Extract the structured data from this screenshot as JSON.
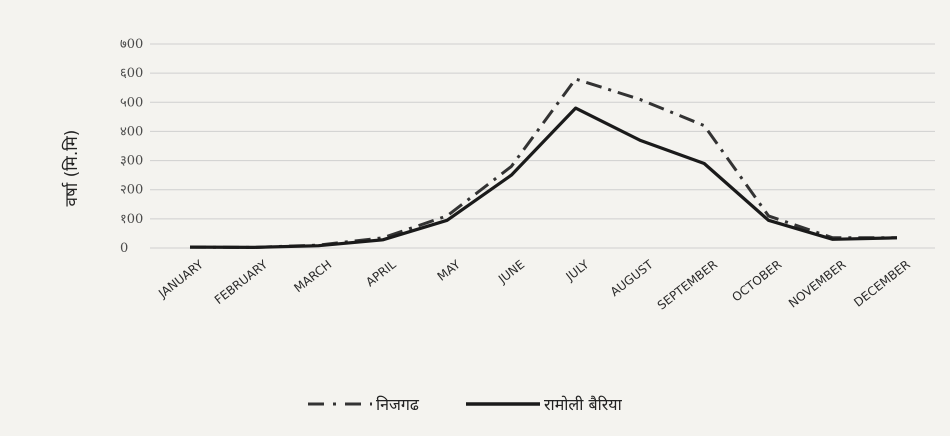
{
  "chart_data": {
    "type": "line",
    "title": "",
    "xlabel": "",
    "ylabel": "वर्षा (मि.मि)",
    "ylim": [
      0,
      700
    ],
    "yticks": [
      {
        "value": 0,
        "label": "0"
      },
      {
        "value": 100,
        "label": "१00"
      },
      {
        "value": 200,
        "label": "२00"
      },
      {
        "value": 300,
        "label": "३00"
      },
      {
        "value": 400,
        "label": "४00"
      },
      {
        "value": 500,
        "label": "५00"
      },
      {
        "value": 600,
        "label": "६00"
      },
      {
        "value": 700,
        "label": "७00"
      }
    ],
    "categories": [
      "JANUARY",
      "FEBRUARY",
      "MARCH",
      "APRIL",
      "MAY",
      "JUNE",
      "JULY",
      "AUGUST",
      "SEPTEMBER",
      "OCTOBER",
      "NOVEMBER",
      "DECEMBER"
    ],
    "series": [
      {
        "name": "निजगढ",
        "style": "dashdot",
        "color": "#333333",
        "values": [
          3,
          2,
          10,
          35,
          110,
          280,
          580,
          510,
          420,
          110,
          35,
          35
        ]
      },
      {
        "name": "रामोली बैरिया",
        "style": "solid",
        "color": "#1a1a1a",
        "values": [
          3,
          2,
          8,
          28,
          95,
          250,
          480,
          370,
          290,
          95,
          30,
          35
        ]
      }
    ],
    "grid": true,
    "legend": "bottom-center"
  }
}
